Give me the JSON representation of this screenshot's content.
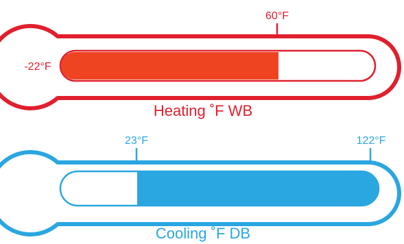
{
  "colors": {
    "heating": "#e0202e",
    "heating_fill": "#ee4422",
    "cooling": "#2aa6e0",
    "cooling_fill": "#2aa6e0"
  },
  "heating": {
    "title": "Heating ˚F WB",
    "min_label": "-22°F",
    "tick_label": "60°F",
    "min_value": -22,
    "max_value": 60,
    "fill_range": [
      -22,
      60
    ]
  },
  "cooling": {
    "title": "Cooling ˚F DB",
    "min_label": "23°F",
    "max_label": "122°F",
    "min_value": 23,
    "max_value": 122,
    "fill_range": [
      23,
      122
    ]
  }
}
